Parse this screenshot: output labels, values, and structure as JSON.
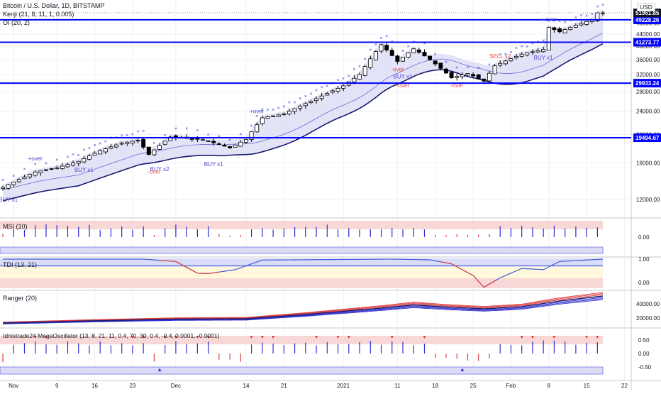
{
  "header": {
    "symbol_line": "Bitcoin / U.S. Dollar, 1D, BITSTAMP",
    "indicator_kenji": "Kenji (21, 8, 11, 1, 0.005)",
    "indicator_oi": "OI (20, 2)",
    "currency_badge": "USD"
  },
  "colors": {
    "up_candle": "#ffffff",
    "down_candle": "#000000",
    "level_line": "#0000ff",
    "price_tag_bg": "#131722",
    "marker_cross": "#3f3fd8",
    "sell_text": "#e0524f",
    "buy_text": "#4a4ad0",
    "band_fill": "#dcdcf6",
    "ma_line": "#1a1a6e",
    "msi_bar": "#2b2bd8",
    "tdi_line": "#3b5bd8",
    "tdi_red": "#e04040",
    "ranger_red": "#e04040",
    "ranger_blue": "#3030d0",
    "osc_bar": "#3030d0",
    "osc_neg": "#e04040",
    "zone_red": "#f8d7d7",
    "zone_blue": "#dbdcf7",
    "zone_yellow": "#fff8dc"
  },
  "chart_data": [
    {
      "type": "candlestick",
      "title": "Bitcoin / U.S. Dollar, 1D, BITSTAMP",
      "ylabel": "USD",
      "x_tick_labels": [
        "Nov",
        "9",
        "16",
        "23",
        "Dec",
        "14",
        "21",
        "2021",
        "11",
        "18",
        "25",
        "Feb",
        "8",
        "15",
        "22"
      ],
      "y_tick_labels": [
        "48000.00",
        "44000.00",
        "40000.00",
        "36000.00",
        "32000.00",
        "28000.00",
        "24000.00",
        "20000.00",
        "16000.00",
        "12000.00"
      ],
      "last_price": "51961.85",
      "horizontal_levels": [
        "49228.26",
        "41273.77",
        "29933.24",
        "19494.67"
      ],
      "ylim": [
        10500,
        55000
      ],
      "dates": [
        "2020-11-01",
        "2020-11-08",
        "2020-11-15",
        "2020-11-22",
        "2020-12-01",
        "2020-12-14",
        "2020-12-21",
        "2021-01-01",
        "2021-01-11",
        "2021-01-18",
        "2021-01-25",
        "2021-02-01",
        "2021-02-08",
        "2021-02-15",
        "2021-02-22"
      ],
      "close_path": [
        [
          "2020-10-30",
          13200
        ],
        [
          "2020-11-05",
          14900
        ],
        [
          "2020-11-09",
          15400
        ],
        [
          "2020-11-13",
          16200
        ],
        [
          "2020-11-17",
          17600
        ],
        [
          "2020-11-21",
          18700
        ],
        [
          "2020-11-24",
          19100
        ],
        [
          "2020-11-26",
          17100
        ],
        [
          "2020-11-30",
          19600
        ],
        [
          "2020-12-06",
          19200
        ],
        [
          "2020-12-11",
          18000
        ],
        [
          "2020-12-14",
          19250
        ],
        [
          "2020-12-17",
          22800
        ],
        [
          "2020-12-21",
          23500
        ],
        [
          "2020-12-27",
          26500
        ],
        [
          "2021-01-01",
          29300
        ],
        [
          "2021-01-04",
          32000
        ],
        [
          "2021-01-08",
          40500
        ],
        [
          "2021-01-11",
          35500
        ],
        [
          "2021-01-14",
          39200
        ],
        [
          "2021-01-17",
          36000
        ],
        [
          "2021-01-21",
          31200
        ],
        [
          "2021-01-24",
          32300
        ],
        [
          "2021-01-27",
          30400
        ],
        [
          "2021-01-29",
          34300
        ],
        [
          "2021-02-03",
          37600
        ],
        [
          "2021-02-07",
          39000
        ],
        [
          "2021-02-08",
          46400
        ],
        [
          "2021-02-10",
          44800
        ],
        [
          "2021-02-13",
          47200
        ],
        [
          "2021-02-16",
          49200
        ],
        [
          "2021-02-17",
          52000
        ],
        [
          "2021-02-18",
          51962
        ]
      ],
      "signals": [
        {
          "label": "BUY x1",
          "date": "2020-10-31",
          "price": 11800
        },
        {
          "label": "+over",
          "date": "2020-11-05",
          "price": 16300
        },
        {
          "label": "BUY x1",
          "date": "2020-11-14",
          "price": 14900
        },
        {
          "label": "BUY x2",
          "date": "2020-11-28",
          "price": 15000
        },
        {
          "label": "-over",
          "date": "2020-11-27",
          "price": 14700
        },
        {
          "label": "BUY x1",
          "date": "2020-12-08",
          "price": 15600
        },
        {
          "label": "+over",
          "date": "2020-12-16",
          "price": 23600
        },
        {
          "label": "-over",
          "date": "2021-01-11",
          "price": 32800
        },
        {
          "label": "BUY x1",
          "date": "2021-01-12",
          "price": 31100
        },
        {
          "label": "-over",
          "date": "2021-01-12",
          "price": 29000
        },
        {
          "label": "-over",
          "date": "2021-01-22",
          "price": 29000
        },
        {
          "label": "SELL x2",
          "date": "2021-01-30",
          "price": 36400
        },
        {
          "label": "BUY x1",
          "date": "2021-02-07",
          "price": 36000
        },
        {
          "label": "+over",
          "date": "2021-02-08",
          "price": 48600
        }
      ]
    },
    {
      "type": "bar",
      "title": "MSI (10)",
      "y_tick_labels": [
        "0.00"
      ]
    },
    {
      "type": "line",
      "title": "TDI (13, 21)",
      "y_tick_labels": [
        "1.00",
        "0.00"
      ],
      "path": [
        [
          "2020-10-30",
          1.0
        ],
        [
          "2020-11-25",
          1.0
        ],
        [
          "2020-12-01",
          0.9
        ],
        [
          "2020-12-05",
          0.4
        ],
        [
          "2020-12-07",
          0.38
        ],
        [
          "2020-12-12",
          0.55
        ],
        [
          "2020-12-17",
          0.96
        ],
        [
          "2021-01-10",
          1.0
        ],
        [
          "2021-01-17",
          0.97
        ],
        [
          "2021-01-21",
          0.8
        ],
        [
          "2021-01-25",
          0.3
        ],
        [
          "2021-01-27",
          -0.2
        ],
        [
          "2021-01-30",
          0.2
        ],
        [
          "2021-02-03",
          0.6
        ],
        [
          "2021-02-07",
          0.55
        ],
        [
          "2021-02-10",
          0.9
        ],
        [
          "2021-02-18",
          1.0
        ]
      ]
    },
    {
      "type": "line",
      "title": "Ranger (20)",
      "y_tick_labels": [
        "40000.00",
        "20000.00"
      ],
      "path": [
        [
          "2020-10-30",
          13000
        ],
        [
          "2020-11-15",
          16000
        ],
        [
          "2020-12-01",
          18500
        ],
        [
          "2020-12-14",
          19000
        ],
        [
          "2020-12-25",
          25000
        ],
        [
          "2021-01-08",
          34000
        ],
        [
          "2021-01-14",
          38500
        ],
        [
          "2021-01-20",
          35500
        ],
        [
          "2021-01-27",
          33000
        ],
        [
          "2021-02-03",
          36000
        ],
        [
          "2021-02-10",
          44000
        ],
        [
          "2021-02-18",
          51000
        ]
      ]
    },
    {
      "type": "bar",
      "title": "Idnistrade24 MegaOscillator (13, 8, 21, 11, 0.4, 70, 30, 0.4, -0.4, 0.0001, -0.0001)",
      "y_tick_labels": [
        "0.50",
        "0.00",
        "-0.50"
      ]
    }
  ]
}
